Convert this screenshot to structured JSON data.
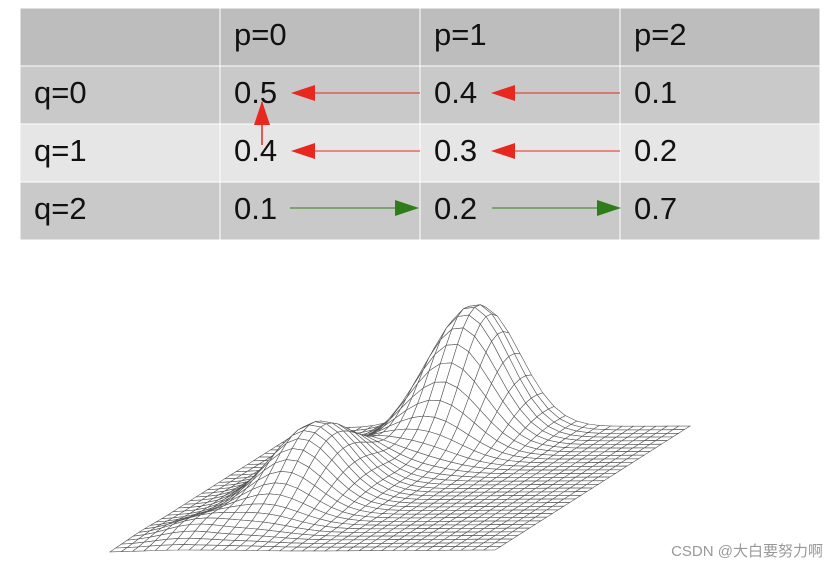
{
  "table": {
    "columns": [
      "p=0",
      "p=1",
      "p=2"
    ],
    "rows": [
      {
        "label": "q=0",
        "cells": [
          "0.5",
          "0.4",
          "0.1"
        ]
      },
      {
        "label": "q=1",
        "cells": [
          "0.4",
          "0.3",
          "0.2"
        ]
      },
      {
        "label": "q=2",
        "cells": [
          "0.1",
          "0.2",
          "0.7"
        ]
      }
    ]
  },
  "watermark": "CSDN @大白要努力啊"
}
